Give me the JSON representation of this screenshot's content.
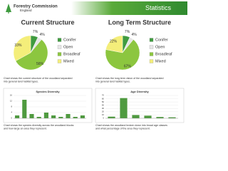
{
  "header": {
    "logo": "Forestry Commission",
    "logo_sub": "England",
    "banner": "Statistics"
  },
  "chart_data": [
    {
      "type": "pie",
      "title": "Current Structure",
      "categories": [
        "Conifer",
        "Open",
        "Broadleaf",
        "Mixed"
      ],
      "values": [
        7,
        4,
        56,
        33
      ],
      "value_labels": [
        "7%",
        "4%",
        "56%",
        "33%"
      ],
      "colors": [
        "#3f9b3f",
        "#e6e6e6",
        "#8cc63f",
        "#f4ee7a"
      ],
      "caption": "Chart shows the current structure of the woodland separated into general land habitat types."
    },
    {
      "type": "pie",
      "title": "Long Term Structure",
      "categories": [
        "Conifer",
        "Open",
        "Broadleaf",
        "Mixed"
      ],
      "values": [
        7,
        4,
        67,
        22
      ],
      "value_labels": [
        "7%",
        "4%",
        "67%",
        "22%"
      ],
      "colors": [
        "#3f9b3f",
        "#e6e6e6",
        "#8cc63f",
        "#f4ee7a"
      ],
      "caption": "Chart shows the long term vision of the woodland separated into general land habitat types."
    },
    {
      "type": "bar",
      "title": "Species Diversity",
      "categories": [
        null,
        null,
        null,
        null,
        null,
        null,
        null,
        null,
        null,
        null
      ],
      "values": [
        2,
        13,
        3,
        1,
        4,
        2,
        1,
        3,
        1,
        2
      ],
      "color": "#4f9a3f",
      "ylim": [
        0,
        16
      ],
      "yticks": [
        0,
        4,
        8,
        12,
        16
      ],
      "grid": true,
      "caption": "Chart shows the species diversity across the woodland blocks and how large an area they represent."
    },
    {
      "type": "bar",
      "title": "Age Diversity",
      "categories": [
        null,
        null,
        null,
        null,
        null,
        null
      ],
      "values": [
        5,
        62,
        10,
        8,
        4,
        3
      ],
      "color": "#4f9a3f",
      "ylim": [
        0,
        70
      ],
      "yticks": [
        0,
        10,
        20,
        30,
        40,
        50,
        60,
        70
      ],
      "grid": true,
      "caption": "Chart shows the woodland broken down into broad age classes and what percentage of the area they represent."
    }
  ]
}
